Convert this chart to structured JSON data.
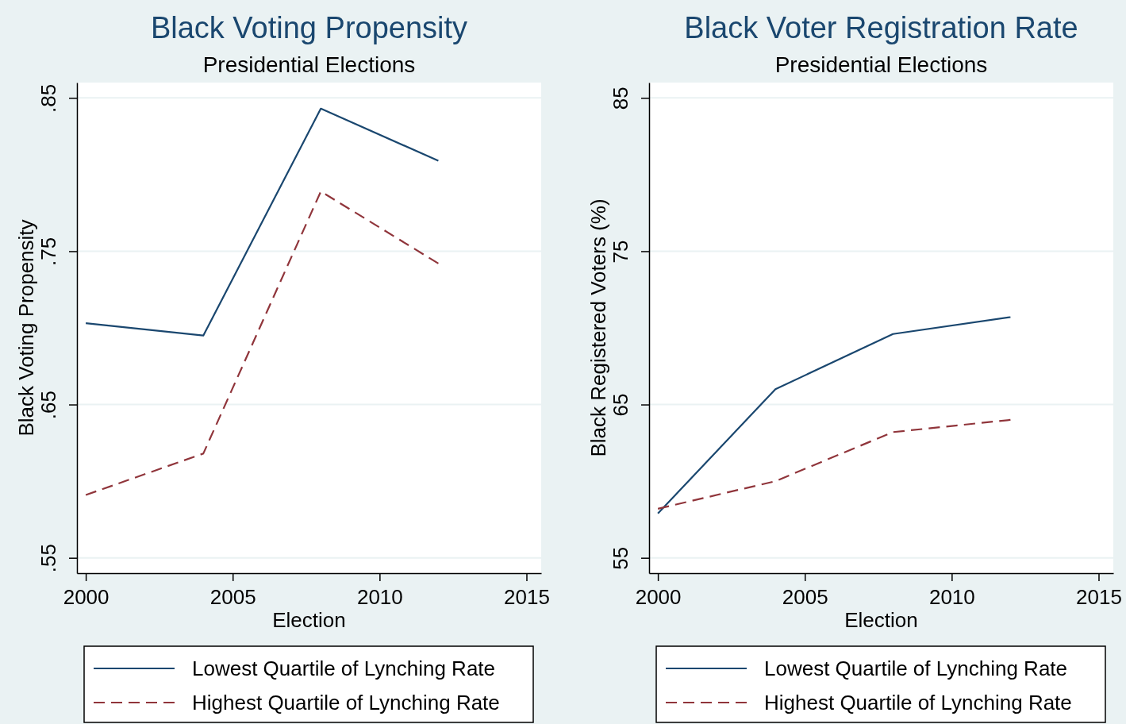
{
  "chart_data": [
    {
      "type": "line",
      "title": "Black Voting Propensity",
      "subtitle": "Presidential Elections",
      "xlabel": "Election",
      "ylabel": "Black Voting Propensity",
      "x": [
        2000,
        2004,
        2008,
        2012
      ],
      "xlim": [
        1999.7,
        2015.5
      ],
      "xticks": [
        2000,
        2005,
        2010,
        2015
      ],
      "ylim": [
        0.54,
        0.86
      ],
      "yticks": [
        {
          "value": 0.55,
          "label": ".55"
        },
        {
          "value": 0.65,
          "label": ".65"
        },
        {
          "value": 0.75,
          "label": ".75"
        },
        {
          "value": 0.85,
          "label": ".85"
        }
      ],
      "grid": "y",
      "legend": "bottom",
      "series": [
        {
          "name": "Lowest Quartile of Lynching Rate",
          "color": "#1a476f",
          "line_style": "solid",
          "values": [
            0.703,
            0.695,
            0.843,
            0.809
          ]
        },
        {
          "name": "Highest Quartile of Lynching Rate",
          "color": "#90353b",
          "line_style": "dashed",
          "values": [
            0.591,
            0.618,
            0.789,
            0.742
          ]
        }
      ]
    },
    {
      "type": "line",
      "title": "Black Voter Registration Rate",
      "subtitle": "Presidential Elections",
      "xlabel": "Election",
      "ylabel": "Black Registered Voters (%)",
      "x": [
        2000,
        2004,
        2008,
        2012
      ],
      "xlim": [
        1999.7,
        2015.5
      ],
      "xticks": [
        2000,
        2005,
        2010,
        2015
      ],
      "ylim": [
        54,
        86
      ],
      "yticks": [
        55,
        65,
        75,
        85
      ],
      "grid": "y",
      "legend": "bottom",
      "series": [
        {
          "name": "Lowest Quartile of Lynching Rate",
          "color": "#1a476f",
          "line_style": "solid",
          "values": [
            57.9,
            66.0,
            69.6,
            70.7
          ]
        },
        {
          "name": "Highest Quartile of Lynching Rate",
          "color": "#90353b",
          "line_style": "dashed",
          "values": [
            58.2,
            60.0,
            63.2,
            64.0
          ]
        }
      ]
    }
  ]
}
